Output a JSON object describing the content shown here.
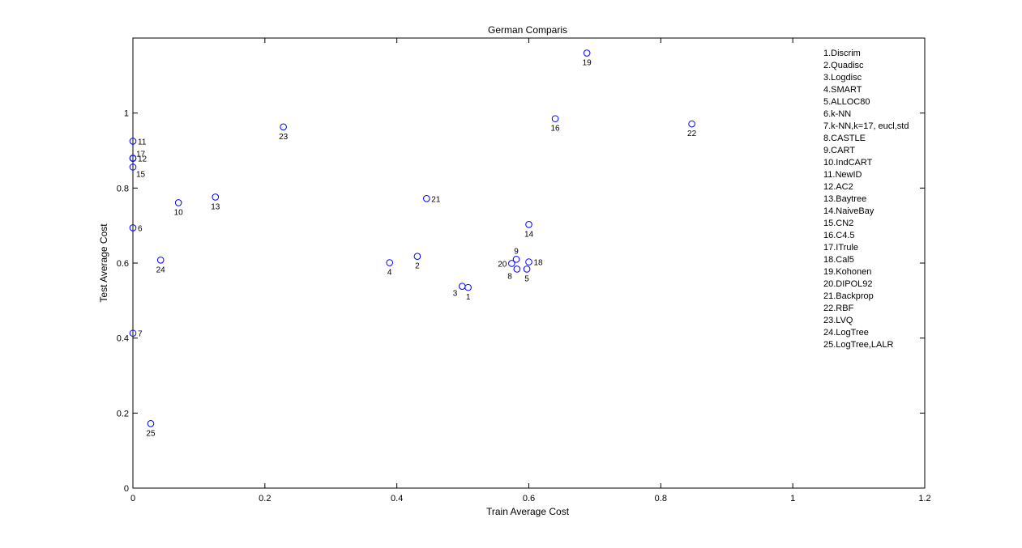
{
  "chart_data": {
    "type": "scatter",
    "title": "German Comparis",
    "xlabel": "Train Average Cost",
    "ylabel": "Test Average Cost",
    "xlim": [
      0,
      1.2
    ],
    "ylim": [
      0,
      1.2
    ],
    "xticks": [
      "0",
      "0.2",
      "0.4",
      "0.6",
      "0.8",
      "1",
      "1.2"
    ],
    "yticks": [
      "0",
      "0.2",
      "0.4",
      "0.6",
      "0.8",
      "1"
    ],
    "xtick_values": [
      0,
      0.2,
      0.4,
      0.6,
      0.8,
      1.0,
      1.2
    ],
    "ytick_values": [
      0,
      0.2,
      0.4,
      0.6,
      0.8,
      1.0
    ],
    "grid": false,
    "marker": "o",
    "marker_color": "#0000ff",
    "legend_placement": "top-right",
    "legend": [
      "1.Discrim",
      "2.Quadisc",
      "3.Logdisc",
      "4.SMART",
      "5.ALLOC80",
      "6.k-NN",
      "7.k-NN,k=17, eucl,std",
      "8.CASTLE",
      "9.CART",
      "10.IndCART",
      "11.NewID",
      "12.AC2",
      "13.Baytree",
      "14.NaiveBay",
      "15.CN2",
      "16.C4.5",
      "17.ITrule",
      "18.Cal5",
      "19.Kohonen",
      "20.DIPOL92",
      "21.Backprop",
      "22.RBF",
      "23.LVQ",
      "24.LogTree",
      "25.LogTree,LALR"
    ],
    "points": [
      {
        "label": "1",
        "x": 0.508,
        "y": 0.535,
        "pos": "below"
      },
      {
        "label": "2",
        "x": 0.431,
        "y": 0.618,
        "pos": "below"
      },
      {
        "label": "3",
        "x": 0.499,
        "y": 0.538,
        "pos": "below-left"
      },
      {
        "label": "4",
        "x": 0.389,
        "y": 0.601,
        "pos": "below"
      },
      {
        "label": "5",
        "x": 0.597,
        "y": 0.584,
        "pos": "below"
      },
      {
        "label": "6",
        "x": 0.0,
        "y": 0.694,
        "pos": "right"
      },
      {
        "label": "7",
        "x": 0.0,
        "y": 0.413,
        "pos": "right"
      },
      {
        "label": "8",
        "x": 0.582,
        "y": 0.584,
        "pos": "below-left"
      },
      {
        "label": "9",
        "x": 0.581,
        "y": 0.61,
        "pos": "above"
      },
      {
        "label": "10",
        "x": 0.069,
        "y": 0.761,
        "pos": "below"
      },
      {
        "label": "11",
        "x": 0.0,
        "y": 0.925,
        "pos": "right"
      },
      {
        "label": "12",
        "x": 0.0,
        "y": 0.879,
        "pos": "right"
      },
      {
        "label": "13",
        "x": 0.125,
        "y": 0.776,
        "pos": "below"
      },
      {
        "label": "14",
        "x": 0.6,
        "y": 0.703,
        "pos": "below"
      },
      {
        "label": "15",
        "x": 0.0,
        "y": 0.856,
        "pos": "below-right"
      },
      {
        "label": "16",
        "x": 0.64,
        "y": 0.985,
        "pos": "below"
      },
      {
        "label": "17",
        "x": 0.0,
        "y": 0.88,
        "pos": "above-right"
      },
      {
        "label": "18",
        "x": 0.6,
        "y": 0.603,
        "pos": "right"
      },
      {
        "label": "19",
        "x": 0.688,
        "y": 1.16,
        "pos": "below"
      },
      {
        "label": "20",
        "x": 0.574,
        "y": 0.599,
        "pos": "left"
      },
      {
        "label": "21",
        "x": 0.445,
        "y": 0.772,
        "pos": "right"
      },
      {
        "label": "22",
        "x": 0.847,
        "y": 0.971,
        "pos": "below"
      },
      {
        "label": "23",
        "x": 0.228,
        "y": 0.963,
        "pos": "below"
      },
      {
        "label": "24",
        "x": 0.042,
        "y": 0.608,
        "pos": "below"
      },
      {
        "label": "25",
        "x": 0.027,
        "y": 0.172,
        "pos": "below"
      }
    ]
  }
}
